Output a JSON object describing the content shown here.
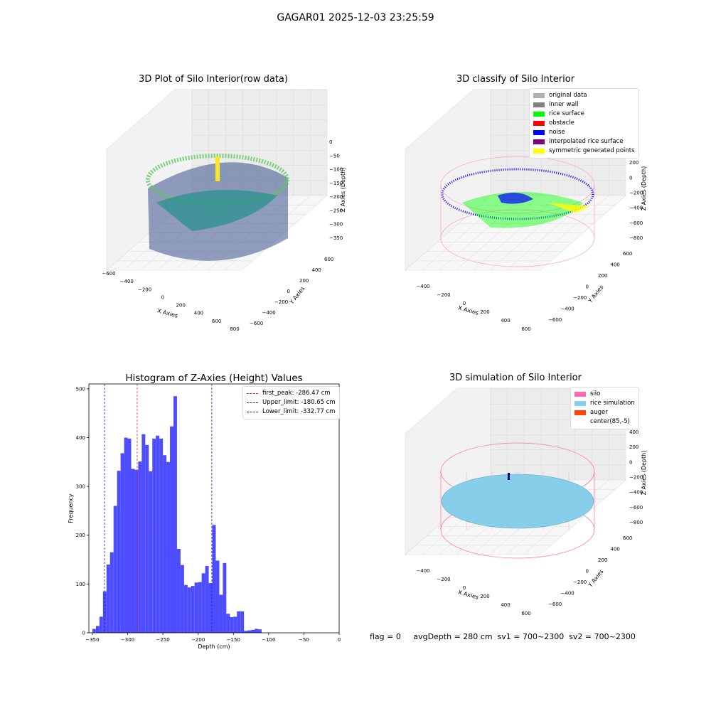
{
  "suptitle": "GAGAR01 2025-12-03 23:25:59",
  "status_text": "flag = 0     avgDepth = 280 cm  sv1 = 700~2300  sv2 = 700~2300",
  "colors": {
    "histogram_bar": "#4d4dff",
    "first_peak": "#d62728",
    "limits": "#1f1fcc",
    "silo": "#ff69b4",
    "rice": "#87ceeb",
    "auger": "#ff4500"
  },
  "panels": {
    "raw": {
      "title": "3D Plot of Silo Interior(row data)",
      "xlabel": "X Axies",
      "ylabel": "Y Axies",
      "zlabel": "Z Axies (Depth)",
      "xticks": [
        "−600",
        "−400",
        "−200",
        "0",
        "200",
        "400",
        "600",
        "800"
      ],
      "yticks": [
        "600",
        "400",
        "200",
        "0",
        "−200",
        "−400",
        "−600"
      ],
      "zticks": [
        "0",
        "−50",
        "−100",
        "−150",
        "−200",
        "−250",
        "−300",
        "−350"
      ]
    },
    "classify": {
      "title": "3D classify of Silo Interior",
      "xlabel": "X Axies",
      "ylabel": "Y Axies",
      "zlabel": "Z Axies (Depth)",
      "xticks": [
        "−400",
        "−200",
        "0",
        "200",
        "400",
        "600"
      ],
      "yticks": [
        "600",
        "400",
        "200",
        "0",
        "−200",
        "−400",
        "−600"
      ],
      "zticks": [
        "400",
        "200",
        "0",
        "−200",
        "−400",
        "−600",
        "−800"
      ],
      "legend": [
        {
          "label": "original data",
          "color": "#b0b0b0"
        },
        {
          "label": "inner wall",
          "color": "#808080"
        },
        {
          "label": "rice surface",
          "color": "#00ff00"
        },
        {
          "label": "obstacle",
          "color": "#ff0000"
        },
        {
          "label": "noise",
          "color": "#0000ff"
        },
        {
          "label": "interpolated rice surface",
          "color": "#800080"
        },
        {
          "label": "symmetric generated points",
          "color": "#ffff00"
        }
      ]
    },
    "simulation": {
      "title": "3D simulation of Silo Interior",
      "xlabel": "X Axies",
      "ylabel": "Y Axies",
      "zlabel": "Z Axies (Depth)",
      "xticks": [
        "−400",
        "−200",
        "0",
        "200",
        "400",
        "600"
      ],
      "yticks": [
        "600",
        "400",
        "200",
        "0",
        "−200",
        "−400",
        "−600"
      ],
      "zticks": [
        "400",
        "200",
        "0",
        "−200",
        "−400",
        "−600",
        "−800"
      ],
      "legend": [
        {
          "label": "silo",
          "color": "#ff69b4"
        },
        {
          "label": "rice simulation",
          "color": "#87ceeb"
        },
        {
          "label": "auger",
          "color": "#ff4500"
        },
        {
          "label": "center(85,-5)",
          "color": "#ffffff"
        }
      ]
    }
  },
  "chart_data": {
    "type": "bar",
    "title": "Histogram of Z-Axies (Height) Values",
    "xlabel": "Depth (cm)",
    "ylabel": "Frequency",
    "xlim": [
      -355,
      0
    ],
    "ylim": [
      0,
      510
    ],
    "xticks": [
      -350,
      -300,
      -250,
      -200,
      -150,
      -100,
      -50,
      0
    ],
    "yticks": [
      0,
      100,
      200,
      300,
      400,
      500
    ],
    "bin_width": 5,
    "bin_start": -350,
    "values": [
      8,
      14,
      33,
      85,
      140,
      165,
      260,
      332,
      368,
      400,
      398,
      336,
      334,
      351,
      407,
      385,
      331,
      398,
      404,
      398,
      364,
      350,
      423,
      485,
      172,
      139,
      98,
      93,
      96,
      103,
      104,
      122,
      137,
      102,
      221,
      148,
      78,
      143,
      39,
      32,
      33,
      44,
      44,
      4,
      5,
      6,
      8,
      7
    ],
    "lines": [
      {
        "label": "first_peak: -286.47 cm",
        "x": -286.47,
        "color": "#d62728"
      },
      {
        "label": "Upper_limit: -180.65 cm",
        "x": -180.65,
        "color": "#1f1fcc"
      },
      {
        "label": "Lower_limit: -332.77 cm",
        "x": -332.77,
        "color": "#1f1fcc"
      }
    ],
    "legend_position": "top-right"
  }
}
